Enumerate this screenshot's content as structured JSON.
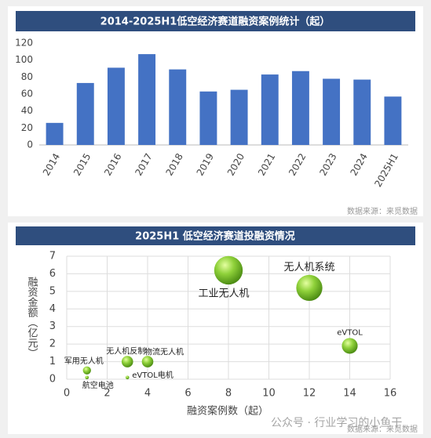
{
  "charts": [
    {
      "type": "bar",
      "title": "2014-2025H1低空经济赛道融资案例统计（起）",
      "categories": [
        "2014",
        "2015",
        "2016",
        "2017",
        "2018",
        "2019",
        "2020",
        "2021",
        "2022",
        "2023",
        "2024",
        "2025H1"
      ],
      "values": [
        26,
        73,
        91,
        107,
        89,
        63,
        65,
        83,
        87,
        78,
        77,
        57
      ],
      "color": "#4472c4",
      "ylim": [
        0,
        120
      ],
      "yticks": [
        0,
        20,
        40,
        60,
        80,
        100,
        120
      ],
      "grid": false,
      "source": "数据来源：来觅数据"
    },
    {
      "type": "bubble",
      "title": "2025H1 低空经济赛道投融资情况",
      "x_label": "融资案例数（起）",
      "y_label": "融资金额（亿元）",
      "labels": [
        "工业无人机",
        "无人机系统",
        "eVTOL",
        "物流无人机",
        "无人机反制",
        "军用无人机",
        "航空电池",
        "eVTOL电机"
      ],
      "x": [
        8,
        12,
        14,
        4,
        3,
        1,
        1,
        3
      ],
      "values": [
        6.2,
        5.2,
        1.9,
        1.0,
        1.0,
        0.5,
        0.1,
        0.1
      ],
      "xlim": [
        0,
        16
      ],
      "xticks": [
        0,
        2,
        4,
        6,
        8,
        10,
        12,
        14,
        16
      ],
      "ylim": [
        0,
        7
      ],
      "yticks": [
        0,
        1,
        2,
        3,
        4,
        5,
        6,
        7
      ],
      "grid": true,
      "source": "数据来源：来觅数据",
      "watermark": "公众号 · 行业学习的小鱼干"
    }
  ]
}
